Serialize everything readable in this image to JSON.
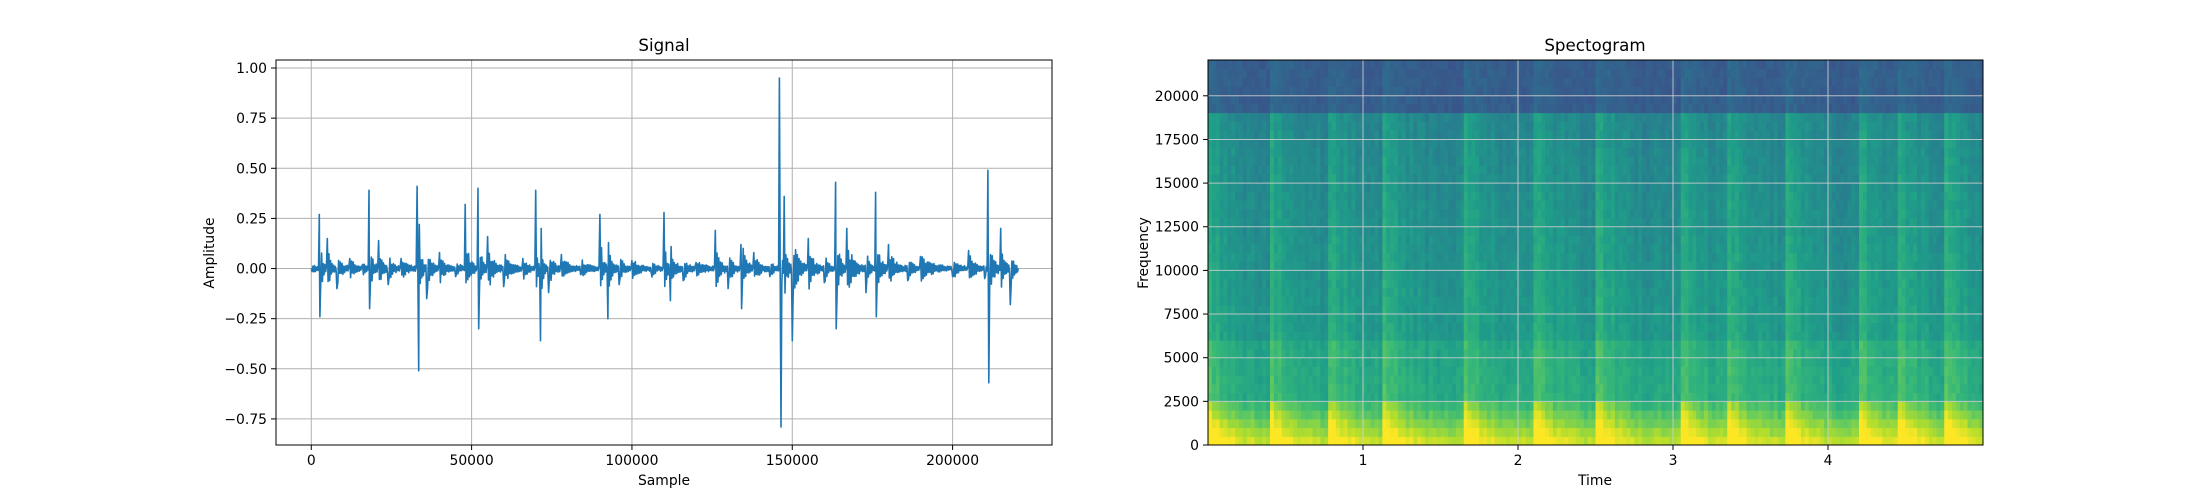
{
  "chart_data": [
    {
      "type": "line",
      "title": "Signal",
      "xlabel": "Sample",
      "ylabel": "Amplitude",
      "xlim": [
        -11000,
        231000
      ],
      "ylim": [
        -0.88,
        1.04
      ],
      "grid": true,
      "xticks": [
        0,
        50000,
        100000,
        150000,
        200000
      ],
      "xtick_labels": [
        "0",
        "50000",
        "100000",
        "150000",
        "200000"
      ],
      "yticks": [
        -0.75,
        -0.5,
        -0.25,
        0.0,
        0.25,
        0.5,
        0.75,
        1.0
      ],
      "ytick_labels": [
        "−0.75",
        "−0.50",
        "−0.25",
        "0.00",
        "0.25",
        "0.50",
        "0.75",
        "1.00"
      ],
      "color": "#1f77b4",
      "series": [
        {
          "x": [
            0,
            2500,
            2700,
            5000,
            8000,
            12000,
            16000,
            18000,
            18200,
            21000,
            24000,
            28000,
            33000,
            33500,
            33700,
            36000,
            40000,
            45000,
            48000,
            52000,
            52200,
            55000,
            60000,
            66000,
            70000,
            71500,
            71700,
            74000,
            78000,
            84000,
            90000,
            92500,
            92700,
            96000,
            100000,
            106000,
            110000,
            112000,
            112200,
            116000,
            120000,
            126000,
            130000,
            134000,
            134200,
            138000,
            143000,
            146000,
            146500,
            147500,
            150000,
            155000,
            160000,
            163500,
            163700,
            167000,
            173000,
            176000,
            176200,
            180000,
            186000,
            190000,
            200000,
            205000,
            210000,
            211000,
            211300,
            215000,
            218000,
            220500
          ],
          "y": [
            0.0,
            0.27,
            -0.24,
            0.15,
            -0.1,
            0.05,
            0.02,
            0.39,
            -0.2,
            0.14,
            -0.08,
            0.05,
            0.41,
            -0.51,
            0.22,
            -0.15,
            0.08,
            -0.04,
            0.32,
            0.4,
            -0.3,
            0.16,
            -0.09,
            0.05,
            0.39,
            -0.36,
            0.2,
            -0.12,
            0.07,
            -0.03,
            0.27,
            -0.25,
            0.13,
            -0.08,
            0.04,
            -0.02,
            0.28,
            -0.16,
            0.11,
            -0.06,
            0.03,
            0.19,
            -0.1,
            0.12,
            -0.2,
            0.08,
            -0.04,
            0.95,
            -0.79,
            0.36,
            -0.36,
            0.15,
            -0.07,
            0.43,
            -0.3,
            0.2,
            -0.12,
            0.38,
            -0.24,
            0.12,
            -0.06,
            0.06,
            -0.04,
            0.09,
            -0.05,
            0.49,
            -0.57,
            0.2,
            -0.18,
            0.0
          ]
        }
      ]
    },
    {
      "type": "heatmap",
      "title": "Spectogram",
      "xlabel": "Time",
      "ylabel": "Frequency",
      "xlim": [
        0,
        5.0
      ],
      "ylim": [
        0,
        22050
      ],
      "grid": true,
      "xticks": [
        1,
        2,
        3,
        4
      ],
      "xtick_labels": [
        "1",
        "2",
        "3",
        "4"
      ],
      "yticks": [
        0,
        2500,
        5000,
        7500,
        10000,
        12500,
        15000,
        17500,
        20000
      ],
      "ytick_labels": [
        "0",
        "2500",
        "5000",
        "7500",
        "10000",
        "12500",
        "15000",
        "17500",
        "20000"
      ],
      "colormap": "viridis",
      "onsets": [
        0.0,
        0.4,
        0.77,
        1.12,
        1.65,
        2.1,
        2.5,
        3.05,
        3.35,
        3.72,
        4.2,
        4.45,
        4.75
      ],
      "cutoff_frequency": 19000
    }
  ]
}
